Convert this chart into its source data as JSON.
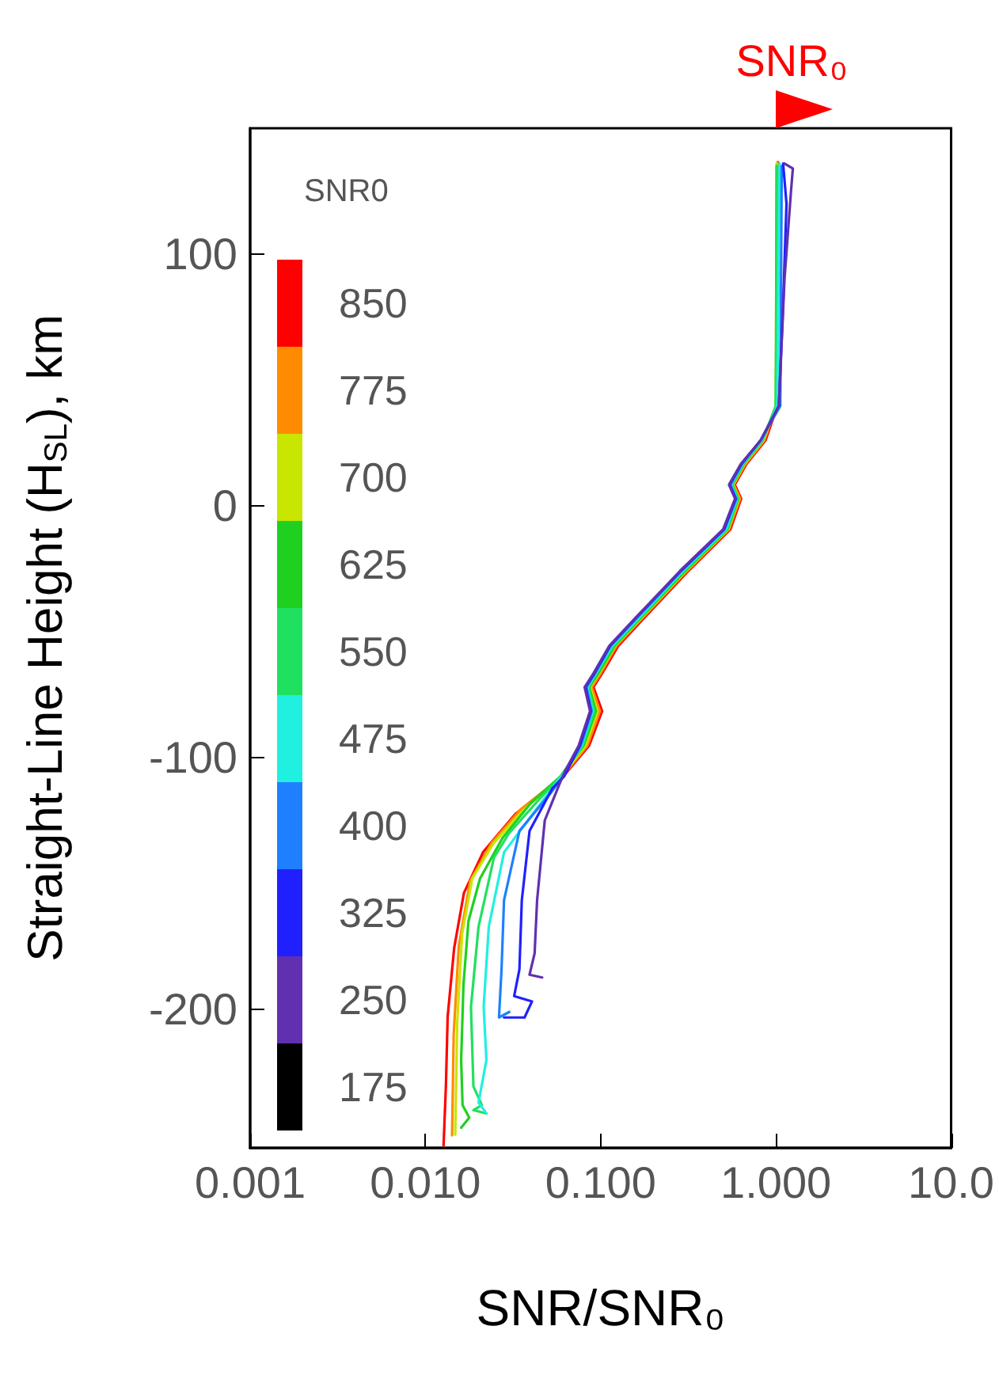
{
  "chart_data": {
    "type": "line",
    "xlabel": "SNR/SNR₀",
    "ylabel": "Straight-Line Height (H$_{SL}$), km",
    "legend_title": "SNR0",
    "annotations": [
      "SNR₀"
    ],
    "log": "x",
    "grid": false,
    "legend": "left",
    "marker": "none",
    "line_style": "solid",
    "xlim": [
      0.001,
      10
    ],
    "xticks": [
      {
        "value": 0.001,
        "label": "0.001"
      },
      {
        "value": 0.01,
        "label": "0.010"
      },
      {
        "value": 0.1,
        "label": "0.100"
      },
      {
        "value": 1,
        "label": "1.000"
      },
      {
        "value": 10,
        "label": "10.0"
      }
    ],
    "ylim": [
      -255,
      150
    ],
    "yticks": [
      -200,
      -100,
      0,
      100
    ],
    "series": [
      {
        "name": "850",
        "color": "#ff0000",
        "x": [
          1.03,
          1.02,
          0.874,
          0.679,
          0.583,
          0.634,
          0.55,
          0.318,
          0.176,
          0.126,
          0.102,
          0.091,
          0.102,
          0.086,
          0.0613,
          0.0326,
          0.0214,
          0.0166,
          0.0146,
          0.0134,
          0.0131,
          0.0127
        ],
        "values": [
          136.5,
          39.7,
          26.1,
          16.6,
          8.4,
          2.9,
          -9.3,
          -25.7,
          -44.7,
          -55.6,
          -66.5,
          -72,
          -81.5,
          -95.2,
          -107.4,
          -122.4,
          -137.4,
          -153.7,
          -175.5,
          -202.8,
          -230,
          -254
        ]
      },
      {
        "name": "775",
        "color": "#ff8c00",
        "x": [
          1.02,
          1.01,
          0.86,
          0.67,
          0.575,
          0.625,
          0.54,
          0.312,
          0.172,
          0.123,
          0.1,
          0.089,
          0.099,
          0.084,
          0.0605,
          0.035,
          0.0238,
          0.018,
          0.0155,
          0.0145,
          0.0142
        ],
        "values": [
          136.5,
          39.7,
          26.1,
          16.6,
          8.4,
          2.9,
          -9.3,
          -25.7,
          -44.7,
          -55.6,
          -66.5,
          -72,
          -81.5,
          -95.2,
          -107.4,
          -120.5,
          -134,
          -149,
          -175,
          -210,
          -250
        ]
      },
      {
        "name": "700",
        "color": "#c8e600",
        "x": [
          1.01,
          1.0,
          0.85,
          0.66,
          0.57,
          0.615,
          0.535,
          0.308,
          0.17,
          0.121,
          0.098,
          0.087,
          0.096,
          0.082,
          0.06,
          0.036,
          0.0245,
          0.0185,
          0.0162,
          0.0152,
          0.0148
        ],
        "values": [
          136,
          39.7,
          26.1,
          16.6,
          8.4,
          2.9,
          -9.3,
          -25.7,
          -44.7,
          -55.6,
          -66.5,
          -72,
          -81.5,
          -95.2,
          -107.4,
          -121,
          -134,
          -148,
          -170,
          -205,
          -249.7
        ]
      },
      {
        "name": "625",
        "color": "#20d020",
        "x": [
          1.01,
          1.0,
          0.84,
          0.655,
          0.565,
          0.61,
          0.53,
          0.305,
          0.168,
          0.12,
          0.097,
          0.086,
          0.094,
          0.08,
          0.059,
          0.04,
          0.0275,
          0.0205,
          0.0176,
          0.0165,
          0.016,
          0.0163,
          0.0178,
          0.016
        ],
        "values": [
          135,
          39.7,
          26.1,
          16.6,
          8.4,
          2.9,
          -9.3,
          -25.7,
          -44.7,
          -55.6,
          -66.5,
          -72,
          -81.5,
          -95.2,
          -107.4,
          -118,
          -132,
          -148,
          -165,
          -190,
          -220,
          -238,
          -243,
          -247
        ]
      },
      {
        "name": "550",
        "color": "#20e060",
        "x": [
          1.02,
          1.0,
          0.84,
          0.65,
          0.56,
          0.605,
          0.525,
          0.3,
          0.166,
          0.118,
          0.095,
          0.085,
          0.092,
          0.079,
          0.059,
          0.044,
          0.03,
          0.0246,
          0.0201,
          0.0182,
          0.0188,
          0.021,
          0.0188,
          0.0223
        ],
        "values": [
          135,
          39.7,
          26.1,
          16.6,
          8.4,
          2.9,
          -9.3,
          -25.7,
          -44.7,
          -55.6,
          -66.5,
          -72,
          -81.5,
          -95.2,
          -107.4,
          -117,
          -130,
          -139.7,
          -167.2,
          -199,
          -230.6,
          -238,
          -240,
          -241.3
        ]
      },
      {
        "name": "475",
        "color": "#20f0e0",
        "x": [
          1.05,
          1.02,
          0.83,
          0.645,
          0.555,
          0.6,
          0.52,
          0.295,
          0.164,
          0.116,
          0.094,
          0.084,
          0.09,
          0.078,
          0.06,
          0.048,
          0.0281,
          0.023,
          0.0215,
          0.0223,
          0.0201,
          0.0223
        ],
        "values": [
          136,
          39.7,
          26.1,
          16.6,
          8.4,
          2.9,
          -9.3,
          -25.7,
          -44.7,
          -55.6,
          -66.5,
          -72,
          -81.5,
          -95.2,
          -107.4,
          -116,
          -137.6,
          -167.2,
          -199,
          -220.1,
          -237,
          -241.3
        ]
      },
      {
        "name": "400",
        "color": "#1e80ff",
        "x": [
          1.08,
          1.06,
          0.82,
          0.64,
          0.55,
          0.595,
          0.51,
          0.29,
          0.16,
          0.114,
          0.093,
          0.083,
          0.089,
          0.077,
          0.061,
          0.052,
          0.0344,
          0.0281,
          0.0272,
          0.0263,
          0.0301
        ],
        "values": [
          135,
          39.7,
          26.1,
          16.6,
          8.4,
          2.9,
          -9.3,
          -25.7,
          -44.7,
          -55.6,
          -66.5,
          -72,
          -81.5,
          -95.2,
          -107.4,
          -114,
          -129.1,
          -156.6,
          -184.1,
          -203.2,
          -201
        ]
      },
      {
        "name": "325",
        "color": "#2020ff",
        "x": [
          1.1,
          1.15,
          1.1,
          1.04,
          0.82,
          0.635,
          0.545,
          0.59,
          0.505,
          0.288,
          0.158,
          0.113,
          0.092,
          0.082,
          0.088,
          0.076,
          0.062,
          0.053,
          0.0393,
          0.0355,
          0.0344,
          0.0321,
          0.0406,
          0.0368,
          0.0281
        ],
        "values": [
          136,
          120,
          80,
          39.7,
          26.1,
          16.6,
          8.4,
          2.9,
          -9.3,
          -25.7,
          -44.7,
          -55.6,
          -66.5,
          -72,
          -81.5,
          -95.2,
          -107.4,
          -112.2,
          -129.1,
          -156.6,
          -184.1,
          -194.7,
          -196.8,
          -203.2,
          -203.2
        ]
      },
      {
        "name": "250",
        "color": "#6030b0",
        "x": [
          1.12,
          1.25,
          1.22,
          1.12,
          1.04,
          0.82,
          0.63,
          0.54,
          0.585,
          0.5,
          0.285,
          0.157,
          0.112,
          0.091,
          0.081,
          0.087,
          0.075,
          0.063,
          0.0586,
          0.048,
          0.0434,
          0.042,
          0.0393,
          0.0464
        ],
        "values": [
          136,
          134,
          125,
          90,
          39.7,
          26.1,
          16.6,
          8.4,
          2.9,
          -9.3,
          -25.7,
          -44.7,
          -55.6,
          -66.5,
          -72,
          -81.5,
          -95.2,
          -105,
          -110,
          -124.9,
          -156.6,
          -177.8,
          -186.2,
          -187.3
        ]
      },
      {
        "name": "175",
        "color": "#000000"
      }
    ]
  }
}
